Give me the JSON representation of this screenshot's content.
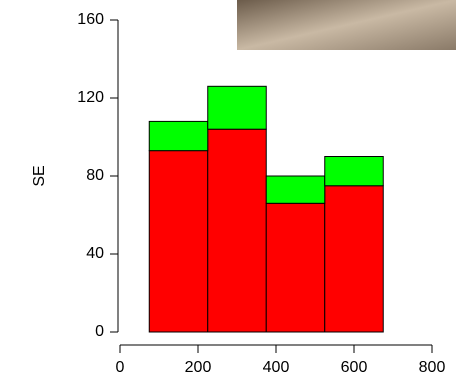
{
  "chart_data": {
    "type": "histogram",
    "ylabel": "SE",
    "bins": [
      75,
      225,
      375,
      525,
      675
    ],
    "series": [
      {
        "color": "#ff0000",
        "values": [
          93,
          104,
          66,
          75
        ]
      },
      {
        "color": "#00ff00",
        "values": [
          15,
          22,
          14,
          15
        ]
      }
    ],
    "xlim": [
      0,
      800
    ],
    "xticks": [
      0,
      200,
      400,
      600,
      800
    ],
    "ylim": [
      0,
      160
    ],
    "yticks": [
      0,
      40,
      80,
      120,
      160
    ],
    "stacked": true
  }
}
